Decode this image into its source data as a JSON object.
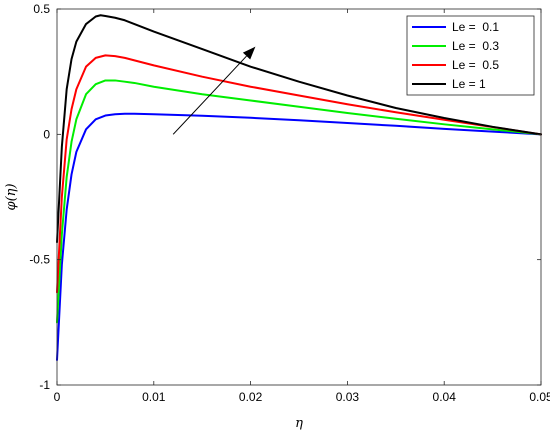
{
  "chart_data": {
    "type": "line",
    "xlabel": "η",
    "ylabel": "φ(η)",
    "xlim": [
      0,
      0.05
    ],
    "ylim": [
      -1,
      0.5
    ],
    "xticks": [
      0,
      0.01,
      0.02,
      0.03,
      0.04,
      0.05
    ],
    "xtick_labels": [
      "0",
      "0.01",
      "0.02",
      "0.03",
      "0.04",
      "0.05"
    ],
    "yticks": [
      -1,
      -0.5,
      0,
      0.5
    ],
    "ytick_labels": [
      "-1",
      "-0.5",
      "0",
      "0.5"
    ],
    "grid": false,
    "legend_position": "top-right",
    "annotation": {
      "type": "arrow",
      "from": [
        0.012,
        0.0
      ],
      "to": [
        0.0205,
        0.35
      ]
    },
    "series": [
      {
        "name": "Le = 0.1",
        "legend_label": "Le =  0.1",
        "color": "#0000ff",
        "x": [
          0,
          0.0005,
          0.001,
          0.0015,
          0.002,
          0.003,
          0.004,
          0.005,
          0.006,
          0.007,
          0.008,
          0.01,
          0.015,
          0.02,
          0.025,
          0.03,
          0.035,
          0.04,
          0.045,
          0.05
        ],
        "y": [
          -0.9,
          -0.52,
          -0.3,
          -0.16,
          -0.07,
          0.02,
          0.06,
          0.075,
          0.08,
          0.082,
          0.082,
          0.08,
          0.074,
          0.066,
          0.056,
          0.045,
          0.034,
          0.022,
          0.011,
          0.0
        ]
      },
      {
        "name": "Le = 0.3",
        "legend_label": "Le =  0.3",
        "color": "#00ee00",
        "x": [
          0,
          0.0005,
          0.001,
          0.0015,
          0.002,
          0.003,
          0.004,
          0.005,
          0.006,
          0.007,
          0.008,
          0.01,
          0.015,
          0.02,
          0.025,
          0.03,
          0.035,
          0.04,
          0.045,
          0.05
        ],
        "y": [
          -0.75,
          -0.4,
          -0.17,
          -0.03,
          0.06,
          0.16,
          0.2,
          0.215,
          0.215,
          0.21,
          0.205,
          0.19,
          0.16,
          0.135,
          0.11,
          0.085,
          0.062,
          0.04,
          0.02,
          0.0
        ]
      },
      {
        "name": "Le = 0.5",
        "legend_label": "Le =  0.5",
        "color": "#ff0000",
        "x": [
          0,
          0.0005,
          0.001,
          0.0015,
          0.002,
          0.003,
          0.004,
          0.005,
          0.006,
          0.007,
          0.008,
          0.01,
          0.015,
          0.02,
          0.025,
          0.03,
          0.035,
          0.04,
          0.045,
          0.05
        ],
        "y": [
          -0.63,
          -0.25,
          -0.02,
          0.1,
          0.18,
          0.27,
          0.305,
          0.315,
          0.312,
          0.305,
          0.295,
          0.275,
          0.23,
          0.19,
          0.155,
          0.12,
          0.088,
          0.058,
          0.029,
          0.0
        ]
      },
      {
        "name": "Le = 1",
        "legend_label": "Le = 1",
        "color": "#000000",
        "x": [
          0,
          0.0005,
          0.001,
          0.0015,
          0.002,
          0.003,
          0.004,
          0.0045,
          0.005,
          0.006,
          0.007,
          0.008,
          0.01,
          0.015,
          0.02,
          0.025,
          0.03,
          0.035,
          0.04,
          0.045,
          0.05
        ],
        "y": [
          -0.43,
          -0.05,
          0.18,
          0.3,
          0.37,
          0.44,
          0.47,
          0.475,
          0.472,
          0.465,
          0.455,
          0.44,
          0.41,
          0.34,
          0.27,
          0.21,
          0.155,
          0.105,
          0.065,
          0.03,
          0.0
        ]
      }
    ]
  }
}
